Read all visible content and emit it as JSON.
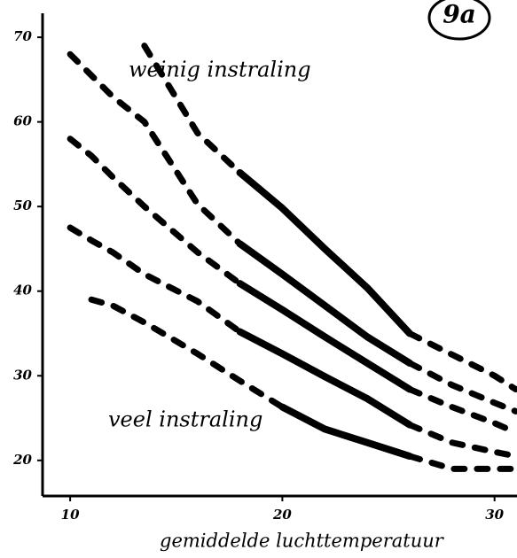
{
  "chart_data": {
    "type": "line",
    "badge": "9a",
    "x_label": "gemiddelde luchttemperatuur",
    "annotations": [
      "weinig instraling",
      "veel instraling"
    ],
    "xlim": [
      8.7,
      31.1
    ],
    "ylim": [
      16,
      72
    ],
    "xticks": [
      10,
      20,
      30
    ],
    "yticks": [
      20,
      30,
      40,
      50,
      60,
      70
    ],
    "x": [
      10,
      11,
      12,
      13.5,
      16,
      18,
      20,
      22,
      24,
      26,
      28,
      30,
      31
    ],
    "series": [
      {
        "color": "#000000",
        "style": "dashed",
        "values": [
          null,
          null,
          null,
          69,
          58.7,
          54,
          null,
          null,
          null,
          35,
          32.5,
          30,
          28.4
        ]
      },
      {
        "color": "#000000",
        "style": "solid",
        "values": [
          null,
          null,
          null,
          null,
          null,
          54,
          49.8,
          45,
          40.4,
          35,
          null,
          null,
          null
        ]
      },
      {
        "color": "#000000",
        "style": "dashed",
        "values": [
          68,
          65.5,
          63,
          60,
          50.3,
          45.6,
          null,
          null,
          null,
          31.5,
          28.9,
          26.8,
          25.8
        ]
      },
      {
        "color": "#000000",
        "style": "solid",
        "values": [
          null,
          null,
          null,
          null,
          null,
          45.6,
          42,
          38.3,
          34.6,
          31.5,
          null,
          null,
          null
        ]
      },
      {
        "color": "#000000",
        "style": "dashed",
        "values": [
          58,
          56,
          53.5,
          50,
          44.6,
          40.9,
          null,
          null,
          null,
          28.4,
          26.3,
          24.4,
          23.3
        ]
      },
      {
        "color": "#000000",
        "style": "solid",
        "values": [
          null,
          null,
          null,
          null,
          null,
          40.9,
          37.8,
          34.6,
          31.5,
          28.4,
          null,
          null,
          null
        ]
      },
      {
        "color": "#000000",
        "style": "dashed",
        "values": [
          47.5,
          46,
          44.6,
          42,
          38.8,
          35.2,
          null,
          null,
          null,
          24.2,
          22.1,
          21,
          20.5
        ]
      },
      {
        "color": "#000000",
        "style": "solid",
        "values": [
          null,
          null,
          null,
          null,
          null,
          35.2,
          32.6,
          29.9,
          27.3,
          24.2,
          null,
          null,
          null
        ]
      },
      {
        "color": "#000000",
        "style": "dashed",
        "values": [
          null,
          39,
          38.3,
          36.3,
          32.6,
          29.4,
          26.3,
          null,
          null,
          20.5,
          19,
          19,
          19
        ]
      },
      {
        "color": "#000000",
        "style": "solid",
        "values": [
          null,
          null,
          null,
          null,
          null,
          null,
          26.3,
          23.7,
          22.1,
          20.5,
          null,
          null,
          null
        ]
      }
    ]
  }
}
